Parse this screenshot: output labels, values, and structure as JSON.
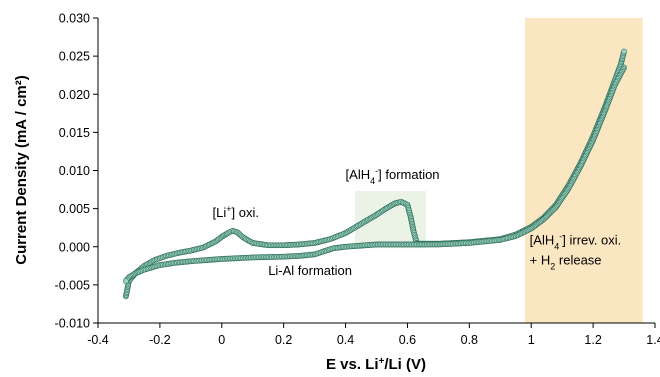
{
  "chart_data": {
    "type": "scatter",
    "title": "",
    "xlabel": {
      "main": "E vs. Li",
      "sup": "+",
      "rest": "/Li (V)"
    },
    "ylabel": "Current Density (mA / cm²)",
    "xlim": [
      -0.4,
      1.4
    ],
    "ylim": [
      -0.01,
      0.03
    ],
    "x_ticks": [
      -0.4,
      -0.2,
      0.0,
      0.2,
      0.4,
      0.6,
      0.8,
      1.0,
      1.2,
      1.4
    ],
    "x_tick_labels": [
      "-0.4",
      "-0.2",
      "0",
      "0.2",
      "0.4",
      "0.6",
      "0.8",
      "1",
      "1.2",
      "1.4"
    ],
    "y_ticks": [
      -0.01,
      -0.005,
      0.0,
      0.005,
      0.01,
      0.015,
      0.02,
      0.025,
      0.03
    ],
    "y_tick_labels": [
      "-0.010",
      "-0.005",
      "0.000",
      "0.005",
      "0.010",
      "0.015",
      "0.020",
      "0.025",
      "0.030"
    ],
    "grid": false,
    "marker_color": "#9fd4c4",
    "marker_edge": "#2f6f5a",
    "highlight_regions": [
      {
        "x": [
          0.98,
          1.36
        ],
        "y": [
          -0.01,
          0.03
        ],
        "color": "#fbe6c2"
      },
      {
        "x": [
          0.43,
          0.66
        ],
        "y": [
          -0.0002,
          0.0073
        ],
        "color": "#eaf3e6"
      }
    ],
    "series": [
      {
        "segment": "anodic",
        "x": [
          -0.31,
          -0.3,
          -0.28,
          -0.25,
          -0.22,
          -0.18,
          -0.14,
          -0.1,
          -0.06,
          -0.02,
          0.0,
          0.02,
          0.035,
          0.05,
          0.07,
          0.1,
          0.15,
          0.2,
          0.25,
          0.3,
          0.35,
          0.4,
          0.45,
          0.5,
          0.53,
          0.56,
          0.58,
          0.6,
          0.61,
          0.62,
          0.63
        ],
        "y": [
          -0.0065,
          -0.0045,
          -0.0035,
          -0.0025,
          -0.0018,
          -0.0012,
          -0.0008,
          -0.0005,
          -0.0001,
          0.0007,
          0.0013,
          0.0018,
          0.0021,
          0.0019,
          0.0012,
          0.0005,
          0.0002,
          0.0002,
          0.0003,
          0.0005,
          0.001,
          0.0018,
          0.003,
          0.0042,
          0.005,
          0.0057,
          0.0059,
          0.0055,
          0.004,
          0.002,
          0.0005
        ]
      },
      {
        "segment": "anodic-continued",
        "x": [
          0.63,
          0.7,
          0.8,
          0.9,
          0.95,
          1.0,
          1.04,
          1.08,
          1.12,
          1.16,
          1.2,
          1.24,
          1.27,
          1.29,
          1.3
        ],
        "y": [
          0.0004,
          0.0004,
          0.0006,
          0.001,
          0.0016,
          0.0026,
          0.0038,
          0.0055,
          0.008,
          0.011,
          0.0145,
          0.0185,
          0.0218,
          0.024,
          0.0256
        ]
      },
      {
        "segment": "cathodic",
        "x": [
          1.3,
          1.27,
          1.24,
          1.2,
          1.16,
          1.12,
          1.08,
          1.04,
          1.0,
          0.95,
          0.9,
          0.8,
          0.7,
          0.6,
          0.5,
          0.4,
          0.36,
          0.33,
          0.3,
          0.25,
          0.2,
          0.1,
          0.0,
          -0.1,
          -0.15,
          -0.2,
          -0.25,
          -0.28,
          -0.3,
          -0.31
        ],
        "y": [
          0.0235,
          0.0212,
          0.018,
          0.014,
          0.0106,
          0.0076,
          0.0052,
          0.0036,
          0.0024,
          0.0014,
          0.0009,
          0.0005,
          0.0003,
          0.0003,
          0.0003,
          0.0,
          -0.0002,
          -0.0006,
          -0.001,
          -0.0012,
          -0.0013,
          -0.0014,
          -0.0016,
          -0.0019,
          -0.0021,
          -0.0024,
          -0.003,
          -0.0035,
          -0.004,
          -0.0045
        ]
      }
    ],
    "annotations": [
      {
        "id": "li-oxi",
        "text": "[Li",
        "sup": "+",
        "rest": "] oxi.",
        "x": -0.03,
        "y": 0.0039
      },
      {
        "id": "alh4-formation",
        "text": "[AlH",
        "sub": "4",
        "sup": "-",
        "rest": "] formation",
        "x": 0.4,
        "y": 0.0089
      },
      {
        "id": "li-al-formation",
        "text": "Li-Al formation",
        "x": 0.15,
        "y": -0.0037
      },
      {
        "id": "alh4-irrev",
        "text": "[AlH",
        "sub": "4",
        "sup": "-",
        "rest": "] irrev. oxi.",
        "x": 0.995,
        "y": 0.0003
      },
      {
        "id": "h2-release",
        "text": "+ H",
        "sub": "2",
        "rest": " release",
        "x": 0.995,
        "y": -0.0023,
        "color": "#e8332a"
      }
    ]
  }
}
